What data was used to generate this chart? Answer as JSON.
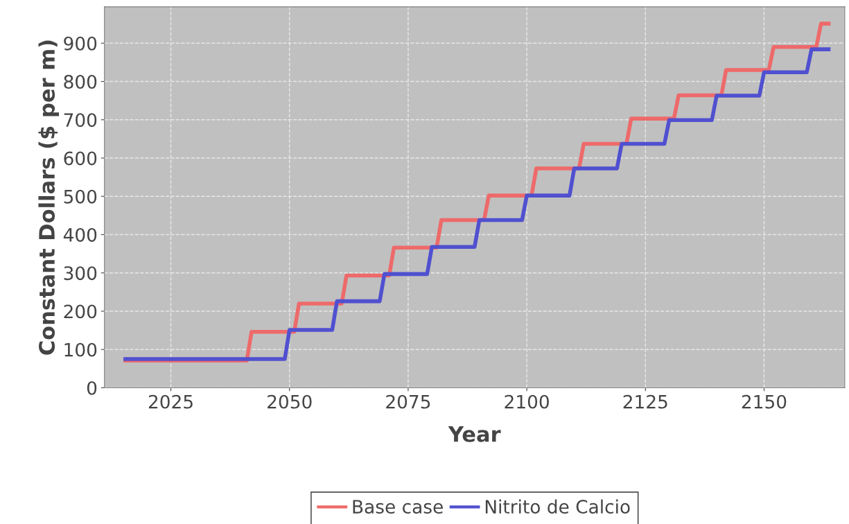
{
  "chart_data": {
    "type": "line",
    "xlabel": "Year",
    "ylabel": "Constant Dollars ($ per m)",
    "xlim": [
      2011,
      2167
    ],
    "xticks": [
      2025,
      2050,
      2075,
      2100,
      2125,
      2150
    ],
    "ylim": [
      0,
      995
    ],
    "yticks": [
      0,
      100,
      200,
      300,
      400,
      500,
      600,
      700,
      800,
      900
    ],
    "grid": true,
    "legend": "bottom",
    "line_style": "solid",
    "series": [
      {
        "name": "Base case",
        "color": "#ee6a6a",
        "x": [
          2015,
          2041,
          2042,
          2051,
          2052,
          2061,
          2062,
          2071,
          2072,
          2081,
          2082,
          2091,
          2092,
          2101,
          2102,
          2111,
          2112,
          2121,
          2122,
          2131,
          2132,
          2141,
          2142,
          2151,
          2152,
          2161,
          2162,
          2164
        ],
        "values": [
          71,
          71,
          146,
          146,
          220,
          220,
          293,
          293,
          366,
          366,
          438,
          438,
          502,
          502,
          573,
          573,
          637,
          637,
          703,
          703,
          764,
          764,
          830,
          830,
          890,
          890,
          951,
          951
        ]
      },
      {
        "name": "Nitrito de Calcio",
        "color": "#5050d0",
        "x": [
          2015,
          2049,
          2050,
          2059,
          2060,
          2069,
          2070,
          2079,
          2080,
          2089,
          2090,
          2099,
          2100,
          2109,
          2110,
          2119,
          2120,
          2129,
          2130,
          2139,
          2140,
          2149,
          2150,
          2159,
          2160,
          2164
        ],
        "values": [
          75,
          75,
          151,
          151,
          226,
          226,
          297,
          297,
          368,
          368,
          438,
          438,
          502,
          502,
          573,
          573,
          637,
          637,
          699,
          699,
          763,
          763,
          824,
          824,
          884,
          884
        ]
      }
    ]
  }
}
